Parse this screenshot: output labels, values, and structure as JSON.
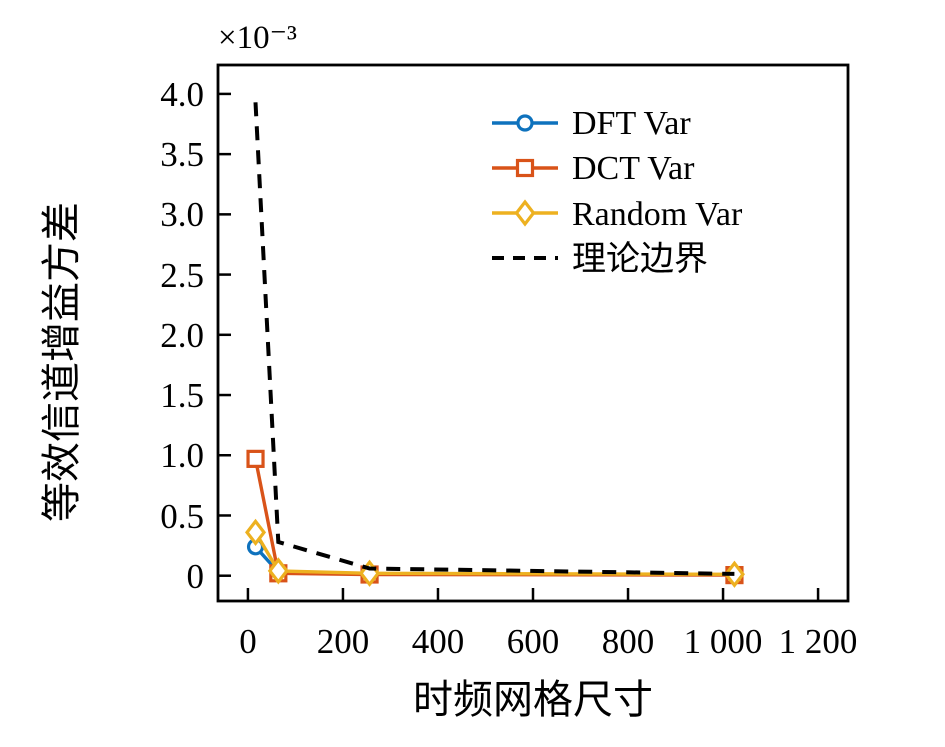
{
  "figure": {
    "background": "#ffffff"
  },
  "chart_data": {
    "type": "line",
    "title": "",
    "xlabel": "时频网格尺寸",
    "ylabel": "等效信道增益方差",
    "y_axis_multiplier": "×10⁻³",
    "grid": false,
    "xlim": [
      -63,
      1263
    ],
    "ylim_e3": [
      -0.21,
      4.24
    ],
    "x_ticks": [
      0,
      200,
      400,
      600,
      800,
      1000,
      1200
    ],
    "x_tick_labels": [
      "0",
      "200",
      "400",
      "600",
      "800",
      "1 000",
      "1 200"
    ],
    "y_ticks_e3": [
      0,
      0.5,
      1.0,
      1.5,
      2.0,
      2.5,
      3.0,
      3.5,
      4.0
    ],
    "y_tick_labels": [
      "0",
      "0.5",
      "1.0",
      "1.5",
      "2.0",
      "2.5",
      "3.0",
      "3.5",
      "4.0"
    ],
    "x": [
      16,
      64,
      256,
      1024
    ],
    "series": [
      {
        "id": "dft",
        "name": "DFT Var",
        "color": "#0E72BD",
        "marker": "circle",
        "line_style": "solid",
        "values_e3": [
          0.24,
          0.03,
          0.015,
          0.008
        ]
      },
      {
        "id": "dct",
        "name": "DCT Var",
        "color": "#D95319",
        "marker": "square",
        "line_style": "solid",
        "values_e3": [
          0.97,
          0.02,
          0.01,
          0.005
        ]
      },
      {
        "id": "random",
        "name": "Random Var",
        "color": "#EDB120",
        "marker": "diamond",
        "line_style": "solid",
        "values_e3": [
          0.36,
          0.04,
          0.02,
          0.012
        ]
      },
      {
        "id": "theory",
        "name": "理论边界",
        "color": "#000000",
        "marker": "none",
        "line_style": "dashed",
        "values_e3": [
          3.93,
          0.28,
          0.06,
          0.015
        ]
      }
    ],
    "legend": {
      "location": "upper right",
      "frame": false
    }
  }
}
